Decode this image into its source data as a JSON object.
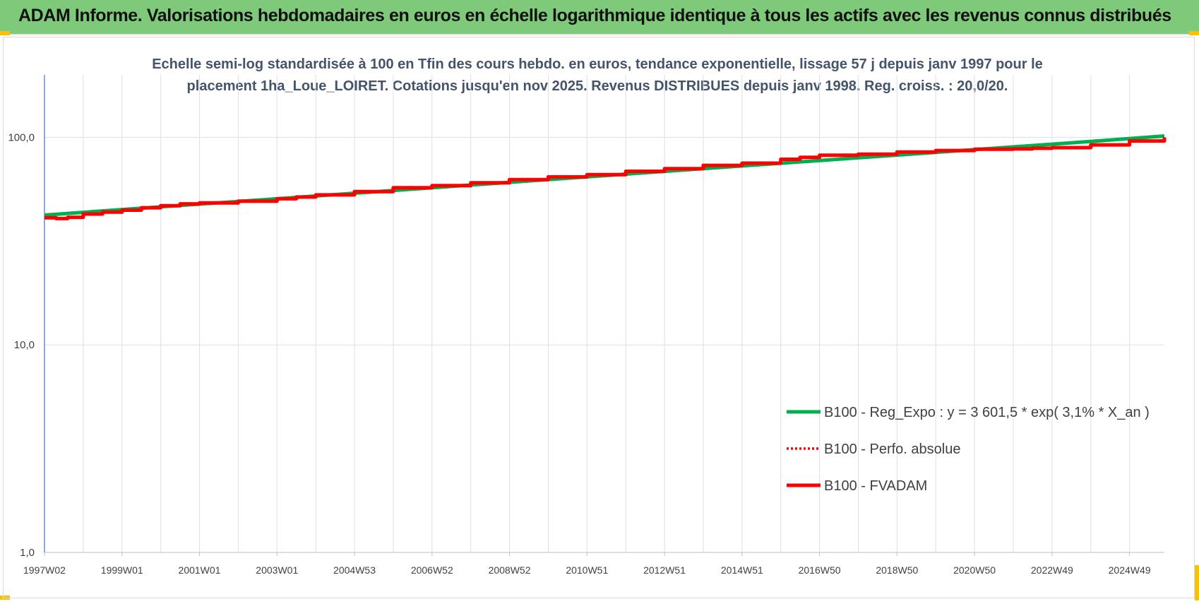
{
  "banner": {
    "title": "ADAM Informe. Valorisations hebdomadaires en euros en échelle logarithmique identique à tous les actifs avec les revenus connus distribués"
  },
  "colors": {
    "banner_bg": "#7fc97a",
    "regression": "#00b050",
    "fvadam": "#ff0000",
    "perfo": "#c00000",
    "grid": "#d9e1e7",
    "corner_accent": "#f4c20d"
  },
  "chart_data": {
    "type": "line",
    "title": "",
    "subtitle_lines": [
      "Echelle semi-log standardisée à 100 en Tfin des cours hebdo. en euros, tendance exponentielle, lissage 57 j depuis janv 1997 pour le",
      "placement 1ha_Loue_LOIRET. Cotations jusqu'en nov 2025.  Revenus DISTRIBUES depuis janv 1998. Reg. croiss. : 20,0/20."
    ],
    "y_scale": "log",
    "ylim": [
      1,
      200
    ],
    "y_ticks": [
      "1,0",
      "10,0",
      "100,0"
    ],
    "y_tick_values": [
      1,
      10,
      100
    ],
    "x_range": [
      1997.0,
      2025.9
    ],
    "x_ticks": [
      "1997W02",
      "1999W01",
      "2001W01",
      "2003W01",
      "2004W53",
      "2006W52",
      "2008W52",
      "2010W51",
      "2012W51",
      "2014W51",
      "2016W50",
      "2018W50",
      "2020W50",
      "2022W49",
      "2024W49"
    ],
    "x_tick_years": [
      1997.0,
      1999.0,
      2001.0,
      2003.0,
      2005.0,
      2007.0,
      2009.0,
      2011.0,
      2013.0,
      2015.0,
      2017.0,
      2019.0,
      2021.0,
      2023.0,
      2025.0
    ],
    "grid": true,
    "legend_position": "bottom-right",
    "series": [
      {
        "name": "B100 - Reg_Expo : y = 3 601,5 * exp( 3,1% *  X_an )",
        "style": "solid-green",
        "x": [
          1997.0,
          2000.0,
          2003.0,
          2006.0,
          2009.0,
          2012.0,
          2015.0,
          2018.0,
          2021.0,
          2024.0,
          2025.9
        ],
        "y": [
          42.2,
          46.3,
          50.6,
          55.5,
          60.7,
          66.5,
          72.8,
          79.7,
          87.3,
          95.6,
          101.5
        ]
      },
      {
        "name": "B100 - Perfo. absolue",
        "style": "dotted-red",
        "x": [
          1997.0,
          1997.3,
          1997.6,
          1998.0,
          1998.5,
          1999.0,
          1999.5,
          2000.0,
          2000.5,
          2001.0,
          2002.0,
          2003.0,
          2003.5,
          2004.0,
          2005.0,
          2006.0,
          2007.0,
          2008.0,
          2009.0,
          2010.0,
          2011.0,
          2012.0,
          2013.0,
          2014.0,
          2015.0,
          2016.0,
          2016.5,
          2017.0,
          2018.0,
          2019.0,
          2020.0,
          2021.0,
          2022.0,
          2022.5,
          2023.0,
          2024.0,
          2025.0,
          2025.9
        ],
        "y": [
          41.0,
          40.6,
          41.2,
          42.7,
          43.6,
          44.6,
          45.8,
          46.8,
          47.8,
          48.3,
          49.3,
          50.6,
          51.6,
          52.8,
          54.8,
          57.2,
          58.5,
          60.4,
          62.6,
          64.5,
          66.1,
          68.6,
          70.7,
          73.3,
          75.1,
          78.4,
          80.1,
          82.0,
          83.0,
          85.0,
          86.4,
          87.6,
          88.0,
          88.6,
          89.2,
          92.0,
          96.0,
          100.0
        ]
      },
      {
        "name": "B100 - FVADAM",
        "style": "solid-red",
        "x": [
          1997.0,
          1997.3,
          1997.6,
          1998.0,
          1998.5,
          1999.0,
          1999.5,
          2000.0,
          2000.5,
          2001.0,
          2002.0,
          2003.0,
          2003.5,
          2004.0,
          2005.0,
          2006.0,
          2007.0,
          2008.0,
          2009.0,
          2010.0,
          2011.0,
          2012.0,
          2013.0,
          2014.0,
          2015.0,
          2016.0,
          2016.5,
          2017.0,
          2018.0,
          2019.0,
          2020.0,
          2021.0,
          2022.0,
          2022.5,
          2023.0,
          2024.0,
          2025.0,
          2025.9
        ],
        "y": [
          41.0,
          40.6,
          41.2,
          42.7,
          43.6,
          44.6,
          45.8,
          46.8,
          47.8,
          48.3,
          49.3,
          50.6,
          51.6,
          52.8,
          54.8,
          57.2,
          58.5,
          60.4,
          62.6,
          64.5,
          66.1,
          68.6,
          70.7,
          73.3,
          75.1,
          78.4,
          80.1,
          82.0,
          83.0,
          85.0,
          86.4,
          87.6,
          88.0,
          88.6,
          89.2,
          92.0,
          96.0,
          100.0
        ]
      }
    ]
  }
}
